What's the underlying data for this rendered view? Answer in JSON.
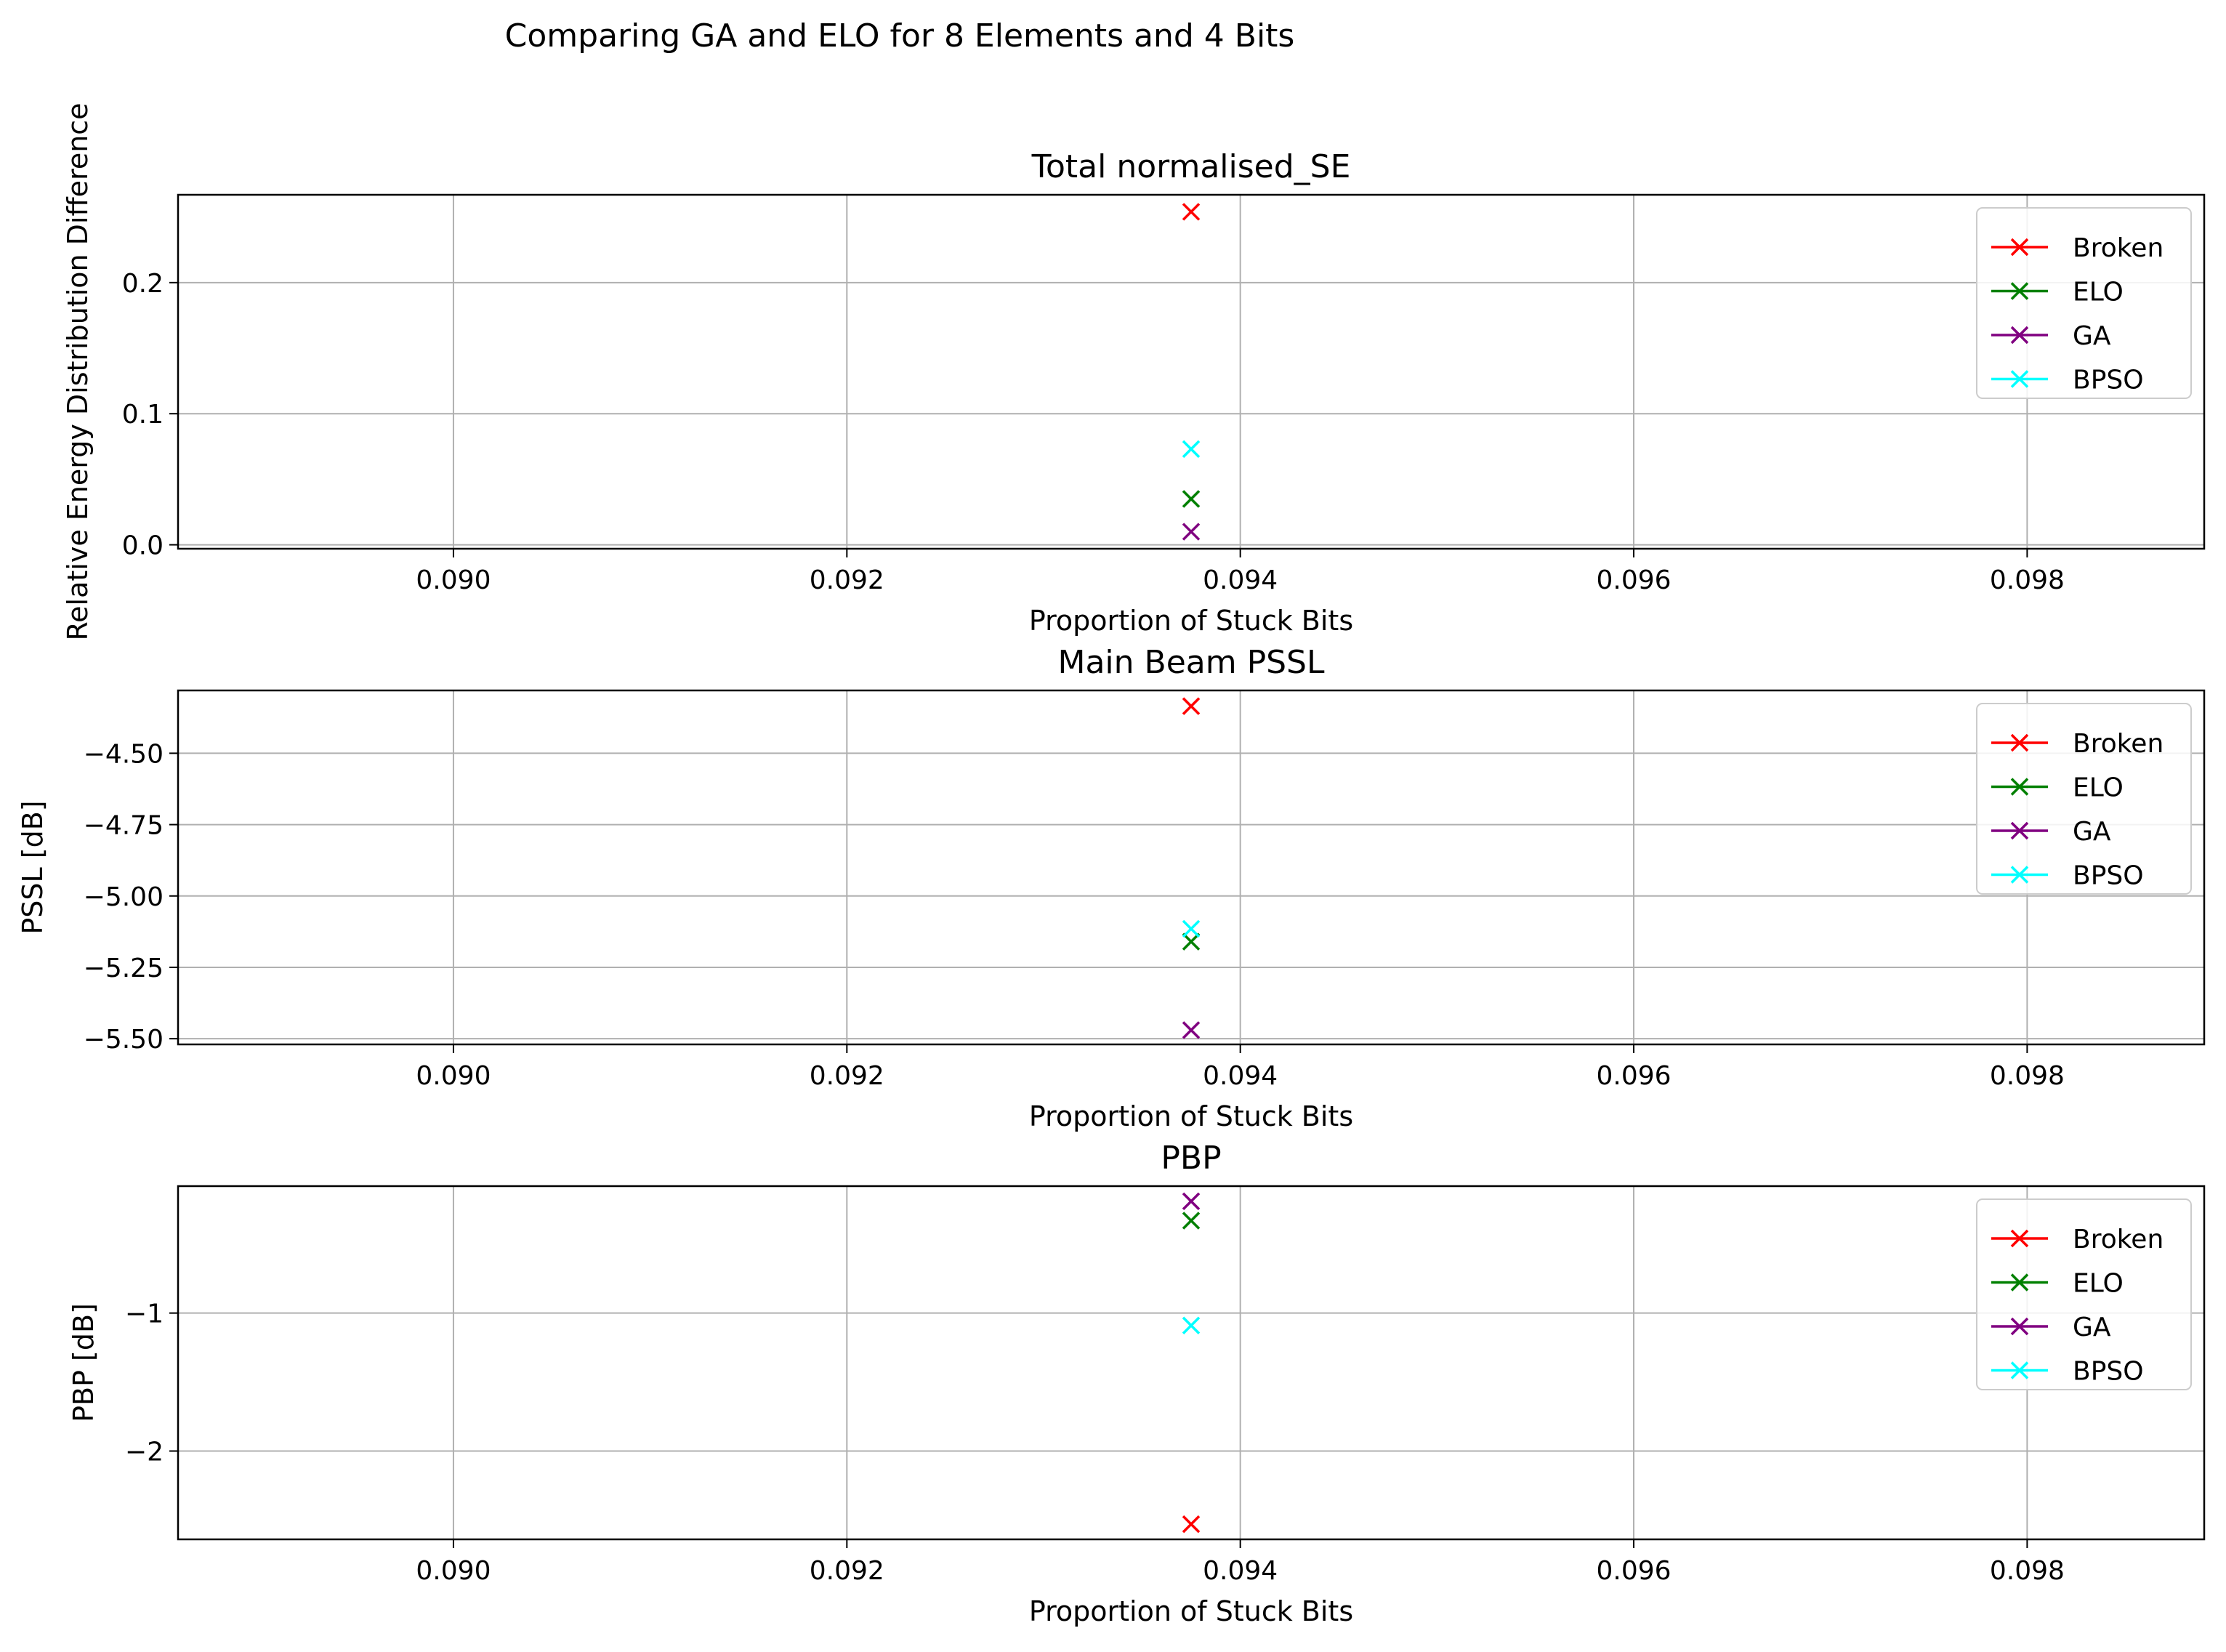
{
  "figure_title": "Comparing GA and ELO for 8 Elements and 4 Bits",
  "chart_data": [
    {
      "type": "scatter",
      "title": "Total normalised_SE",
      "xlabel": "Proportion of Stuck Bits",
      "ylabel": "Relative Energy Distribution Difference",
      "xlim": [
        0.0886,
        0.0989
      ],
      "ylim": [
        -0.003,
        0.267
      ],
      "xticks": [
        0.09,
        0.092,
        0.094,
        0.096,
        0.098
      ],
      "xtick_labels": [
        "0.090",
        "0.092",
        "0.094",
        "0.096",
        "0.098"
      ],
      "yticks": [
        0.0,
        0.1,
        0.2
      ],
      "ytick_labels": [
        "0.0",
        "0.1",
        "0.2"
      ],
      "grid": true,
      "legend_position": "upper right",
      "series": [
        {
          "name": "Broken",
          "color": "#ff0000",
          "x": [
            0.09375
          ],
          "y": [
            0.254
          ]
        },
        {
          "name": "ELO",
          "color": "#008000",
          "x": [
            0.09375
          ],
          "y": [
            0.035
          ]
        },
        {
          "name": "GA",
          "color": "#800080",
          "x": [
            0.09375
          ],
          "y": [
            0.01
          ]
        },
        {
          "name": "BPSO",
          "color": "#00ffff",
          "x": [
            0.09375
          ],
          "y": [
            0.073
          ]
        }
      ]
    },
    {
      "type": "scatter",
      "title": "Main Beam PSSL",
      "xlabel": "Proportion of Stuck Bits",
      "ylabel": "PSSL [dB]",
      "xlim": [
        0.0886,
        0.0989
      ],
      "ylim": [
        -5.52,
        -4.28
      ],
      "xticks": [
        0.09,
        0.092,
        0.094,
        0.096,
        0.098
      ],
      "xtick_labels": [
        "0.090",
        "0.092",
        "0.094",
        "0.096",
        "0.098"
      ],
      "yticks": [
        -4.5,
        -4.75,
        -5.0,
        -5.25,
        -5.5
      ],
      "ytick_labels": [
        "−4.50",
        "−4.75",
        "−5.00",
        "−5.25",
        "−5.50"
      ],
      "grid": true,
      "legend_position": "upper right",
      "series": [
        {
          "name": "Broken",
          "color": "#ff0000",
          "x": [
            0.09375
          ],
          "y": [
            -4.335
          ]
        },
        {
          "name": "ELO",
          "color": "#008000",
          "x": [
            0.09375
          ],
          "y": [
            -5.16
          ]
        },
        {
          "name": "GA",
          "color": "#800080",
          "x": [
            0.09375
          ],
          "y": [
            -5.47
          ]
        },
        {
          "name": "BPSO",
          "color": "#00ffff",
          "x": [
            0.09375
          ],
          "y": [
            -5.115
          ]
        }
      ]
    },
    {
      "type": "scatter",
      "title": "PBP",
      "xlabel": "Proportion of Stuck Bits",
      "ylabel": "PBP [dB]",
      "xlim": [
        0.0886,
        0.0989
      ],
      "ylim": [
        -2.64,
        -0.08
      ],
      "xticks": [
        0.09,
        0.092,
        0.094,
        0.096,
        0.098
      ],
      "xtick_labels": [
        "0.090",
        "0.092",
        "0.094",
        "0.096",
        "0.098"
      ],
      "yticks": [
        -1,
        -2
      ],
      "ytick_labels": [
        "−1",
        "−2"
      ],
      "grid": true,
      "legend_position": "upper right",
      "series": [
        {
          "name": "Broken",
          "color": "#ff0000",
          "x": [
            0.09375
          ],
          "y": [
            -2.53
          ]
        },
        {
          "name": "ELO",
          "color": "#008000",
          "x": [
            0.09375
          ],
          "y": [
            -0.33
          ]
        },
        {
          "name": "GA",
          "color": "#800080",
          "x": [
            0.09375
          ],
          "y": [
            -0.19
          ]
        },
        {
          "name": "BPSO",
          "color": "#00ffff",
          "x": [
            0.09375
          ],
          "y": [
            -1.09
          ]
        }
      ]
    }
  ]
}
